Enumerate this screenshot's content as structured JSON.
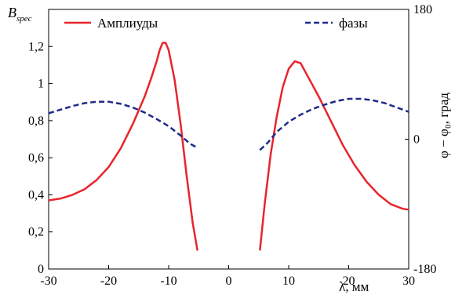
{
  "chart_data": {
    "type": "line",
    "xlabel": "λ, мм",
    "ylabel_main": "B",
    "ylabel_sub": "spec",
    "y2label": "φ − φ₀, град",
    "xlim": [
      -30,
      30
    ],
    "ylim": [
      0,
      1.4
    ],
    "y2lim": [
      -180,
      180
    ],
    "x_ticks": [
      "-30",
      "-20",
      "-10",
      "0",
      "10",
      "20",
      "30"
    ],
    "y_ticks": [
      "0",
      "0,2",
      "0,4",
      "0,6",
      "0,8",
      "1",
      "1,2"
    ],
    "y2_ticks": [
      "-180",
      "0",
      "180"
    ],
    "legend_position": "top",
    "grid": false,
    "series": [
      {
        "name": "Амплиуды",
        "axis": "left",
        "color": "#e8242c",
        "dash": "solid",
        "segments": [
          [
            [
              -30,
              0.37
            ],
            [
              -28,
              0.38
            ],
            [
              -26,
              0.4
            ],
            [
              -24,
              0.43
            ],
            [
              -22,
              0.48
            ],
            [
              -20,
              0.55
            ],
            [
              -18,
              0.65
            ],
            [
              -16,
              0.78
            ],
            [
              -14,
              0.93
            ],
            [
              -13,
              1.02
            ],
            [
              -12,
              1.12
            ],
            [
              -11.5,
              1.18
            ],
            [
              -11,
              1.22
            ],
            [
              -10.5,
              1.22
            ],
            [
              -10,
              1.18
            ],
            [
              -9,
              1.02
            ],
            [
              -8,
              0.78
            ],
            [
              -7,
              0.5
            ],
            [
              -6,
              0.25
            ],
            [
              -5.2,
              0.1
            ]
          ],
          [
            [
              5.2,
              0.1
            ],
            [
              6,
              0.35
            ],
            [
              7,
              0.62
            ],
            [
              8,
              0.82
            ],
            [
              9,
              0.98
            ],
            [
              10,
              1.08
            ],
            [
              11,
              1.12
            ],
            [
              12,
              1.11
            ],
            [
              13,
              1.05
            ],
            [
              15,
              0.93
            ],
            [
              17,
              0.8
            ],
            [
              19,
              0.67
            ],
            [
              21,
              0.56
            ],
            [
              23,
              0.47
            ],
            [
              25,
              0.4
            ],
            [
              27,
              0.35
            ],
            [
              29,
              0.325
            ],
            [
              30,
              0.32
            ]
          ]
        ]
      },
      {
        "name": "фазы",
        "axis": "right",
        "color": "#1f2a8a",
        "dash": "dashed",
        "segments": [
          [
            [
              -30,
              36
            ],
            [
              -28,
              41
            ],
            [
              -26,
              46
            ],
            [
              -24,
              50
            ],
            [
              -22,
              52
            ],
            [
              -20,
              52
            ],
            [
              -18,
              49
            ],
            [
              -16,
              44
            ],
            [
              -14,
              37
            ],
            [
              -12,
              28
            ],
            [
              -10,
              18
            ],
            [
              -8,
              5
            ],
            [
              -6.5,
              -6
            ],
            [
              -5.2,
              -12
            ]
          ],
          [
            [
              5.2,
              -15
            ],
            [
              6.5,
              -5
            ],
            [
              8,
              10
            ],
            [
              10,
              24
            ],
            [
              12,
              34
            ],
            [
              14,
              42
            ],
            [
              16,
              48
            ],
            [
              18,
              53
            ],
            [
              20,
              56
            ],
            [
              22,
              56
            ],
            [
              24,
              54
            ],
            [
              26,
              50
            ],
            [
              28,
              44
            ],
            [
              30,
              38
            ]
          ]
        ]
      }
    ]
  }
}
